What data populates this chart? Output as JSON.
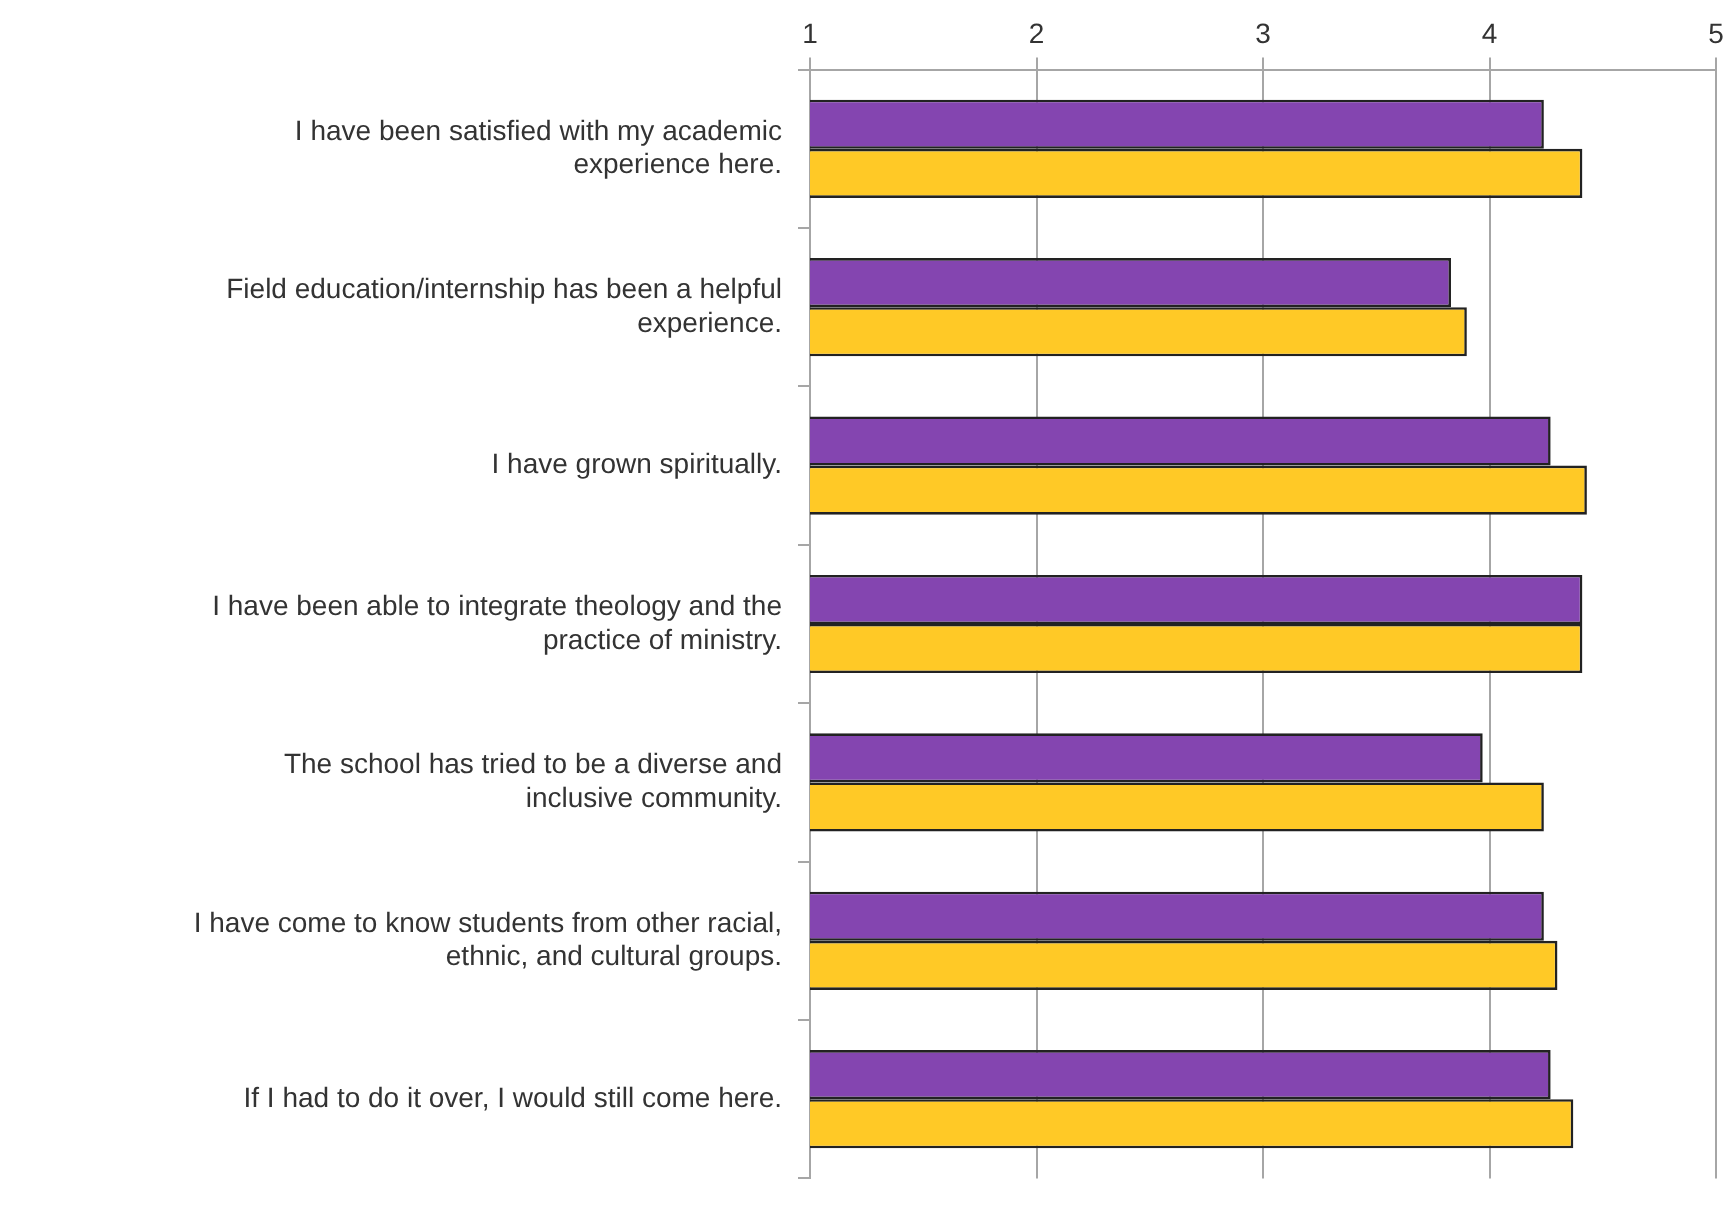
{
  "chart_data": {
    "type": "bar",
    "orientation": "horizontal",
    "categories": [
      "I have been satisfied with my academic experience here.",
      "Field education/internship has been a helpful experience.",
      "I have grown spiritually.",
      "I have been able to integrate theology and the practice of ministry.",
      "The school has tried to be a diverse and inclusive community.",
      "I have come to know students from other racial, ethnic, and cultural groups.",
      "If I had to do it over, I would still come here."
    ],
    "series": [
      {
        "color": "#8445b0",
        "values": [
          4.24,
          3.83,
          4.27,
          4.41,
          3.97,
          4.24,
          4.27
        ]
      },
      {
        "color": "#ffc926",
        "values": [
          4.41,
          3.9,
          4.43,
          4.41,
          4.24,
          4.3,
          4.37
        ]
      }
    ],
    "xlim": [
      1,
      5
    ],
    "xticks": [
      1,
      2,
      3,
      4,
      5
    ],
    "grid": "x",
    "legend": false
  }
}
